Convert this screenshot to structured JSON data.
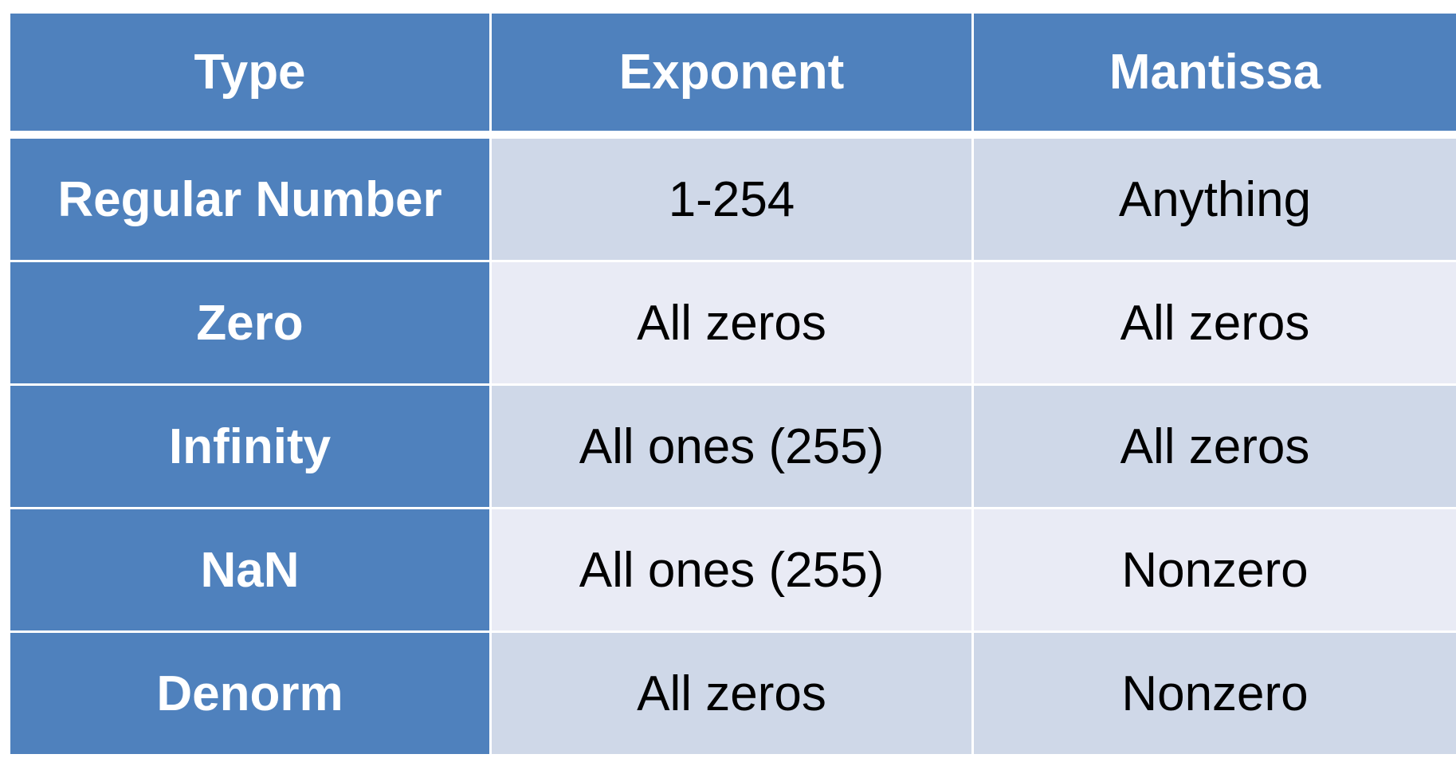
{
  "table": {
    "headers": [
      "Type",
      "Exponent",
      "Mantissa"
    ],
    "rows": [
      {
        "type": "Regular Number",
        "exponent": "1-254",
        "mantissa": "Anything"
      },
      {
        "type": "Zero",
        "exponent": "All zeros",
        "mantissa": "All zeros"
      },
      {
        "type": "Infinity",
        "exponent": "All ones (255)",
        "mantissa": "All zeros"
      },
      {
        "type": "NaN",
        "exponent": "All ones (255)",
        "mantissa": "Nonzero"
      },
      {
        "type": "Denorm",
        "exponent": "All zeros",
        "mantissa": "Nonzero"
      }
    ]
  },
  "colors": {
    "header_fill": "#4f81bd",
    "header_text": "#ffffff",
    "row_band_dark": "#cfd8e8",
    "row_band_light": "#e9ebf5",
    "cell_text": "#000000",
    "grid_lines": "#ffffff"
  }
}
